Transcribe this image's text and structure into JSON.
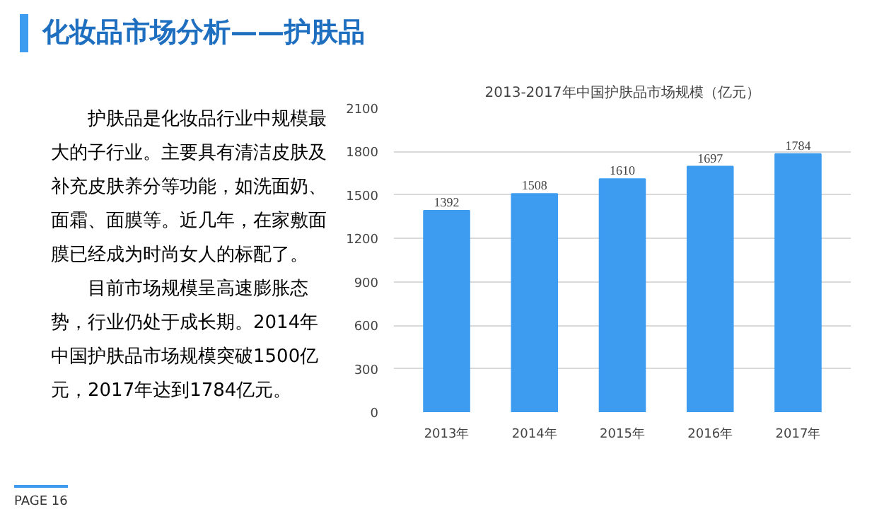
{
  "chart_data": {
    "type": "bar",
    "title": "2013-2017年中国护肤品市场规模（亿元）",
    "categories": [
      "2013年",
      "2014年",
      "2015年",
      "2016年",
      "2017年"
    ],
    "values": [
      1392,
      1508,
      1610,
      1697,
      1784
    ],
    "color": "#3d9cf0",
    "ylim": [
      0,
      2100
    ],
    "yticks": [
      0,
      300,
      600,
      900,
      1200,
      1500,
      1800,
      2100
    ],
    "grid": "y",
    "data_labels": true,
    "legend": false,
    "annotations": [
      "化妆品市场分析——护肤品",
      "护肤品是化妆品行业中规模最大的子行业。主要具有清洁皮肤及补充皮肤养分等功能，如洗面奶、面霜、面膜等。近几年，在家敷面膜已经成为时尚女人的标配了。",
      "目前市场规模呈高速膨胀态势，行业仍处于成长期。2014年中国护肤品市场规模突破1500亿元，2017年达到1784亿元。",
      "PAGE 16"
    ]
  }
}
